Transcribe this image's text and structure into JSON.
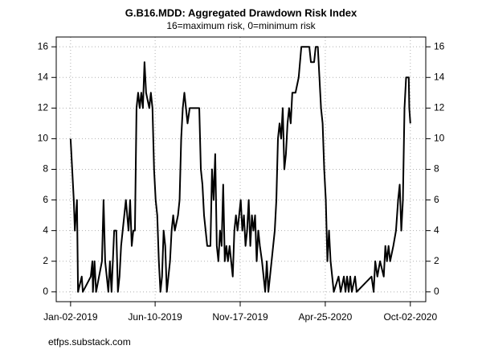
{
  "chart_data": {
    "type": "line",
    "title": "G.B16.MDD: Aggregated Drawdown Risk Index",
    "subtitle": "16=maximum risk, 0=minimum risk",
    "source": "etfps.substack.com",
    "grid": true,
    "ylim": [
      -0.64,
      16.64
    ],
    "yticks": [
      0,
      2,
      4,
      6,
      8,
      10,
      12,
      14,
      16
    ],
    "xlim": [
      "2018-12-06",
      "2020-10-31"
    ],
    "xticks": [
      {
        "value": "2019-01-02",
        "label": "Jan-02-2019"
      },
      {
        "value": "2019-06-10",
        "label": "Jun-10-2019"
      },
      {
        "value": "2019-11-17",
        "label": "Nov-17-2019"
      },
      {
        "value": "2020-04-25",
        "label": "Apr-25-2020"
      },
      {
        "value": "2020-10-02",
        "label": "Oct-02-2020"
      }
    ],
    "x": [
      "2019-01-02",
      "2019-01-05",
      "2019-01-08",
      "2019-01-10",
      "2019-01-14",
      "2019-01-16",
      "2019-01-23",
      "2019-01-25",
      "2019-02-09",
      "2019-02-12",
      "2019-02-13",
      "2019-02-16",
      "2019-02-19",
      "2019-03-02",
      "2019-03-05",
      "2019-03-08",
      "2019-03-11",
      "2019-03-14",
      "2019-03-17",
      "2019-03-20",
      "2019-03-25",
      "2019-03-29",
      "2019-04-01",
      "2019-04-04",
      "2019-04-07",
      "2019-04-10",
      "2019-04-13",
      "2019-04-16",
      "2019-04-21",
      "2019-04-24",
      "2019-04-27",
      "2019-04-30",
      "2019-05-03",
      "2019-05-06",
      "2019-05-09",
      "2019-05-12",
      "2019-05-15",
      "2019-05-18",
      "2019-05-21",
      "2019-05-24",
      "2019-05-30",
      "2019-06-02",
      "2019-06-05",
      "2019-06-08",
      "2019-06-11",
      "2019-06-14",
      "2019-06-17",
      "2019-06-20",
      "2019-06-23",
      "2019-06-26",
      "2019-06-29",
      "2019-07-02",
      "2019-07-05",
      "2019-07-08",
      "2019-07-11",
      "2019-07-14",
      "2019-07-17",
      "2019-07-23",
      "2019-07-26",
      "2019-07-29",
      "2019-08-01",
      "2019-08-04",
      "2019-08-07",
      "2019-08-10",
      "2019-08-14",
      "2019-09-01",
      "2019-09-04",
      "2019-09-07",
      "2019-09-10",
      "2019-09-16",
      "2019-09-22",
      "2019-09-25",
      "2019-09-28",
      "2019-10-01",
      "2019-10-04",
      "2019-10-07",
      "2019-10-10",
      "2019-10-13",
      "2019-10-16",
      "2019-10-19",
      "2019-10-22",
      "2019-10-25",
      "2019-10-28",
      "2019-10-31",
      "2019-11-03",
      "2019-11-06",
      "2019-11-09",
      "2019-11-12",
      "2019-11-15",
      "2019-11-18",
      "2019-11-21",
      "2019-11-24",
      "2019-11-27",
      "2019-11-30",
      "2019-12-03",
      "2019-12-06",
      "2019-12-09",
      "2019-12-12",
      "2019-12-15",
      "2019-12-18",
      "2019-12-21",
      "2019-12-24",
      "2019-12-28",
      "2019-12-31",
      "2020-01-03",
      "2020-01-06",
      "2020-01-09",
      "2020-01-12",
      "2020-01-15",
      "2020-01-18",
      "2020-01-21",
      "2020-01-24",
      "2020-01-27",
      "2020-01-30",
      "2020-02-02",
      "2020-02-05",
      "2020-02-08",
      "2020-02-11",
      "2020-02-14",
      "2020-02-17",
      "2020-02-20",
      "2020-02-23",
      "2020-02-29",
      "2020-03-06",
      "2020-03-11",
      "2020-03-26",
      "2020-03-29",
      "2020-04-04",
      "2020-04-07",
      "2020-04-11",
      "2020-04-14",
      "2020-04-17",
      "2020-04-20",
      "2020-04-23",
      "2020-04-26",
      "2020-04-29",
      "2020-05-02",
      "2020-05-05",
      "2020-05-08",
      "2020-05-11",
      "2020-05-20",
      "2020-05-24",
      "2020-05-30",
      "2020-06-02",
      "2020-06-05",
      "2020-06-08",
      "2020-06-11",
      "2020-06-14",
      "2020-06-20",
      "2020-06-23",
      "2020-07-21",
      "2020-07-25",
      "2020-07-28",
      "2020-08-01",
      "2020-08-06",
      "2020-08-13",
      "2020-08-16",
      "2020-08-19",
      "2020-08-22",
      "2020-08-25",
      "2020-08-31",
      "2020-09-05",
      "2020-09-09",
      "2020-09-12",
      "2020-09-15",
      "2020-09-18",
      "2020-09-21",
      "2020-09-24",
      "2020-09-29",
      "2020-09-30",
      "2020-10-02"
    ],
    "series": [
      {
        "name": "G.B16.MDD",
        "color": "#000000",
        "values": [
          10,
          8,
          6,
          4,
          6,
          0,
          1,
          0,
          1,
          2,
          0,
          2,
          0,
          2,
          6,
          2,
          1,
          0,
          2,
          0,
          4,
          4,
          0,
          1,
          3,
          4,
          5,
          6,
          4,
          6,
          3,
          4,
          4,
          12,
          13,
          12,
          13,
          12,
          15,
          13,
          12,
          13,
          12,
          8,
          6,
          5,
          2,
          0,
          1,
          4,
          3,
          0,
          1,
          2,
          4,
          5,
          4,
          5,
          6,
          10,
          12,
          13,
          12,
          11,
          12,
          12,
          8,
          7,
          5,
          3,
          3,
          8,
          6,
          9,
          3,
          2,
          4,
          3,
          7,
          2,
          3,
          2,
          3,
          2,
          1,
          4,
          5,
          4,
          5,
          6,
          4,
          5,
          3,
          4,
          6,
          3,
          5,
          4,
          5,
          2,
          4,
          3,
          2,
          1,
          0,
          2,
          0,
          1,
          2,
          3,
          4,
          6,
          10,
          11,
          10,
          12,
          8,
          9,
          11,
          12,
          11,
          13,
          13,
          14,
          16,
          16,
          15,
          15,
          16,
          16,
          14,
          12,
          11,
          8,
          6,
          2,
          4,
          2,
          1,
          0,
          1,
          0,
          1,
          0,
          1,
          0,
          1,
          0,
          1,
          0,
          1,
          0,
          2,
          1,
          2,
          1,
          3,
          2,
          3,
          2,
          3,
          4,
          6,
          7,
          4,
          6,
          12,
          14,
          14,
          12,
          11
        ]
      }
    ]
  }
}
